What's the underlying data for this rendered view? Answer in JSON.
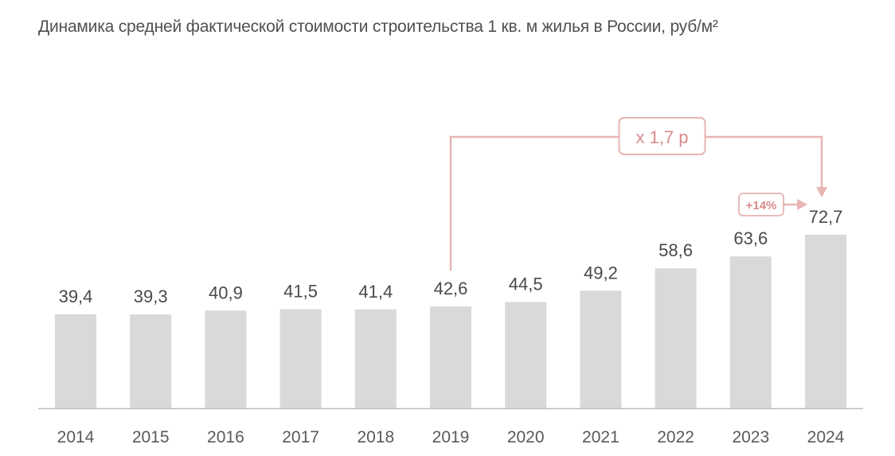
{
  "chart_data": {
    "type": "bar",
    "title": "Динамика средней фактической стоимости строительства 1 кв. м жилья в России, руб/м²",
    "categories": [
      "2014",
      "2015",
      "2016",
      "2017",
      "2018",
      "2019",
      "2020",
      "2021",
      "2022",
      "2023",
      "2024"
    ],
    "values": [
      39.4,
      39.3,
      40.9,
      41.5,
      41.4,
      42.6,
      44.5,
      49.2,
      58.6,
      63.6,
      72.7
    ],
    "value_labels": [
      "39,4",
      "39,3",
      "40,9",
      "41,5",
      "41,4",
      "42,6",
      "44,5",
      "49,2",
      "58,6",
      "63,6",
      "72,7"
    ],
    "xlabel": "",
    "ylabel": "",
    "ylim": [
      0,
      75
    ],
    "grid": false,
    "legend": "none",
    "colors": {
      "bar": "#d9d9d9",
      "accent": "#e8b4b4",
      "accent_text": "#d98a8a",
      "label": "#4a4a4a",
      "tick": "#5a5a5a",
      "axis": "#bdbdbd"
    },
    "annotations": [
      {
        "text": "x 1,7 р",
        "from": "2019",
        "to": "2024"
      },
      {
        "text": "+14%",
        "from": "2023",
        "to": "2024"
      }
    ]
  }
}
